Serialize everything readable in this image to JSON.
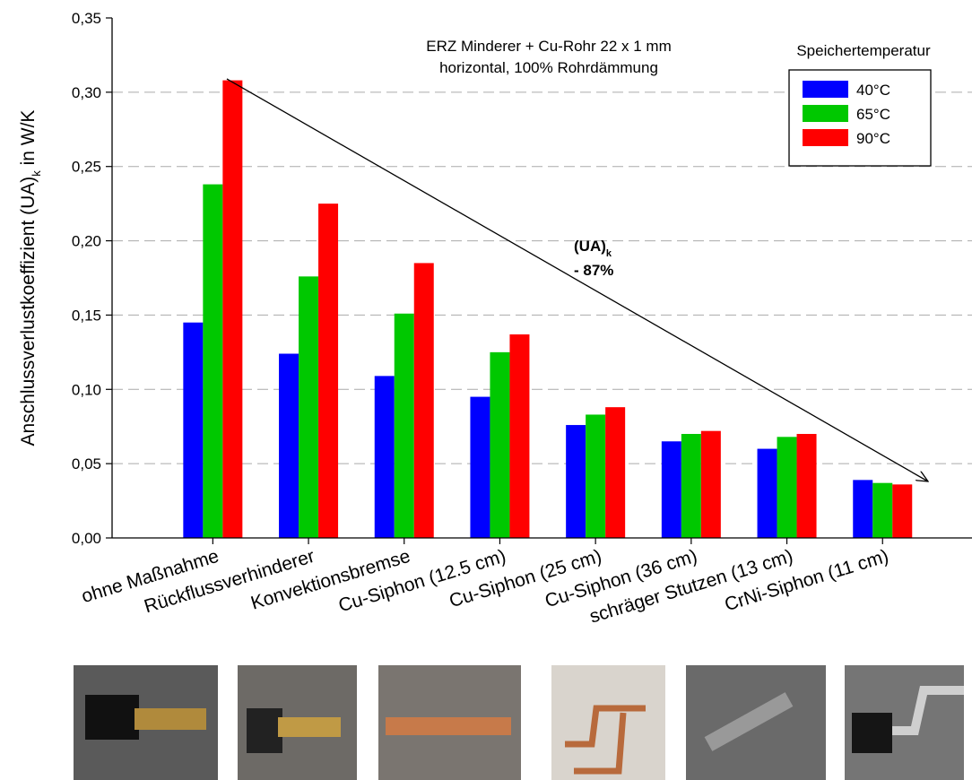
{
  "chart_data": {
    "type": "bar",
    "annotations": [
      "ERZ Minderer + Cu-Rohr 22 x 1 mm",
      "horizontal, 100% Rohrdämmung"
    ],
    "reduction_label": {
      "main": "(UA)",
      "sub": "k",
      "value": "- 87%"
    },
    "ylabel": {
      "main": "Anschlussverlustkoeffizient (UA)",
      "sub": "k",
      "unit": " in W/K"
    },
    "legend_title": "Speichertemperatur",
    "categories": [
      "ohne Maßnahme",
      "Rückflussverhinderer",
      "Konvektionsbremse",
      "Cu-Siphon (12.5 cm)",
      "Cu-Siphon  (25 cm)",
      "Cu-Siphon  (36 cm)",
      "schräger Stutzen (13 cm)",
      "CrNi-Siphon (11 cm)"
    ],
    "series": [
      {
        "name": "40°C",
        "color": "#0000ff",
        "values": [
          0.145,
          0.124,
          0.109,
          0.095,
          0.076,
          0.065,
          0.06,
          0.039
        ]
      },
      {
        "name": "65°C",
        "color": "#00c800",
        "values": [
          0.238,
          0.176,
          0.151,
          0.125,
          0.083,
          0.07,
          0.068,
          0.037
        ]
      },
      {
        "name": "90°C",
        "color": "#ff0000",
        "values": [
          0.308,
          0.225,
          0.185,
          0.137,
          0.088,
          0.072,
          0.07,
          0.036
        ]
      }
    ],
    "ylim": [
      0,
      0.35
    ],
    "yticks": [
      {
        "value": 0,
        "label": "0,00"
      },
      {
        "value": 0.05,
        "label": "0,05"
      },
      {
        "value": 0.1,
        "label": "0,10"
      },
      {
        "value": 0.15,
        "label": "0,15"
      },
      {
        "value": 0.2,
        "label": "0,20"
      },
      {
        "value": 0.25,
        "label": "0,25"
      },
      {
        "value": 0.3,
        "label": "0,30"
      },
      {
        "value": 0.35,
        "label": "0,35"
      }
    ],
    "grid": true
  }
}
